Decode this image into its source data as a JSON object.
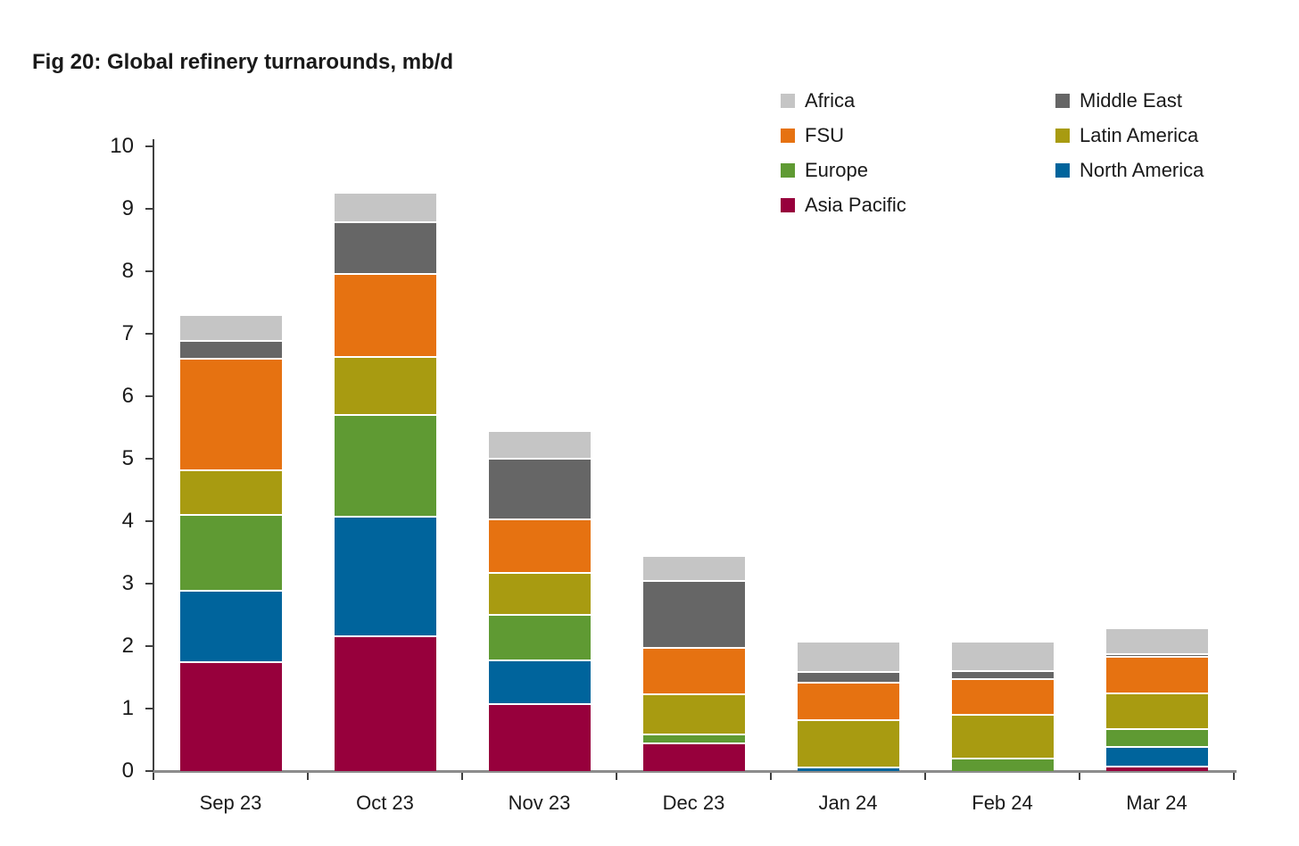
{
  "title": "Fig 20: Global refinery turnarounds, mb/d",
  "chart_data": {
    "type": "bar",
    "stacked": true,
    "title": "Fig 20: Global refinery turnarounds, mb/d",
    "unit": "mb/d",
    "categories": [
      "Sep 23",
      "Oct 23",
      "Nov 23",
      "Dec 23",
      "Jan 24",
      "Feb 24",
      "Mar 24"
    ],
    "series": [
      {
        "name": "Asia Pacific",
        "color": "#97003C",
        "values": [
          1.75,
          2.17,
          1.08,
          0.45,
          0.0,
          0.0,
          0.08
        ]
      },
      {
        "name": "North America",
        "color": "#00649C",
        "values": [
          1.15,
          1.92,
          0.7,
          0.0,
          0.07,
          0.0,
          0.32
        ]
      },
      {
        "name": "Europe",
        "color": "#5F9A33",
        "values": [
          1.21,
          1.62,
          0.73,
          0.15,
          0.0,
          0.22,
          0.29
        ]
      },
      {
        "name": "Latin America",
        "color": "#A89B11",
        "values": [
          0.72,
          0.93,
          0.68,
          0.64,
          0.76,
          0.7,
          0.56
        ]
      },
      {
        "name": "FSU",
        "color": "#E67211",
        "values": [
          1.78,
          1.33,
          0.85,
          0.75,
          0.6,
          0.56,
          0.59
        ]
      },
      {
        "name": "Middle East",
        "color": "#666666",
        "values": [
          0.29,
          0.83,
          0.97,
          1.07,
          0.17,
          0.14,
          0.05
        ]
      },
      {
        "name": "Africa",
        "color": "#C5C5C5",
        "values": [
          0.42,
          0.47,
          0.45,
          0.4,
          0.49,
          0.47,
          0.41
        ]
      }
    ],
    "totals": [
      7.32,
      9.27,
      5.46,
      3.46,
      2.09,
      2.09,
      2.3
    ],
    "ylim": [
      0,
      10
    ],
    "yticks": [
      0,
      1,
      2,
      3,
      4,
      5,
      6,
      7,
      8,
      9,
      10
    ],
    "grid": false,
    "legend_position": "top-right",
    "legend_columns": [
      [
        "Africa",
        "FSU",
        "Europe",
        "Asia Pacific"
      ],
      [
        "Middle East",
        "Latin America",
        "North America"
      ]
    ]
  }
}
